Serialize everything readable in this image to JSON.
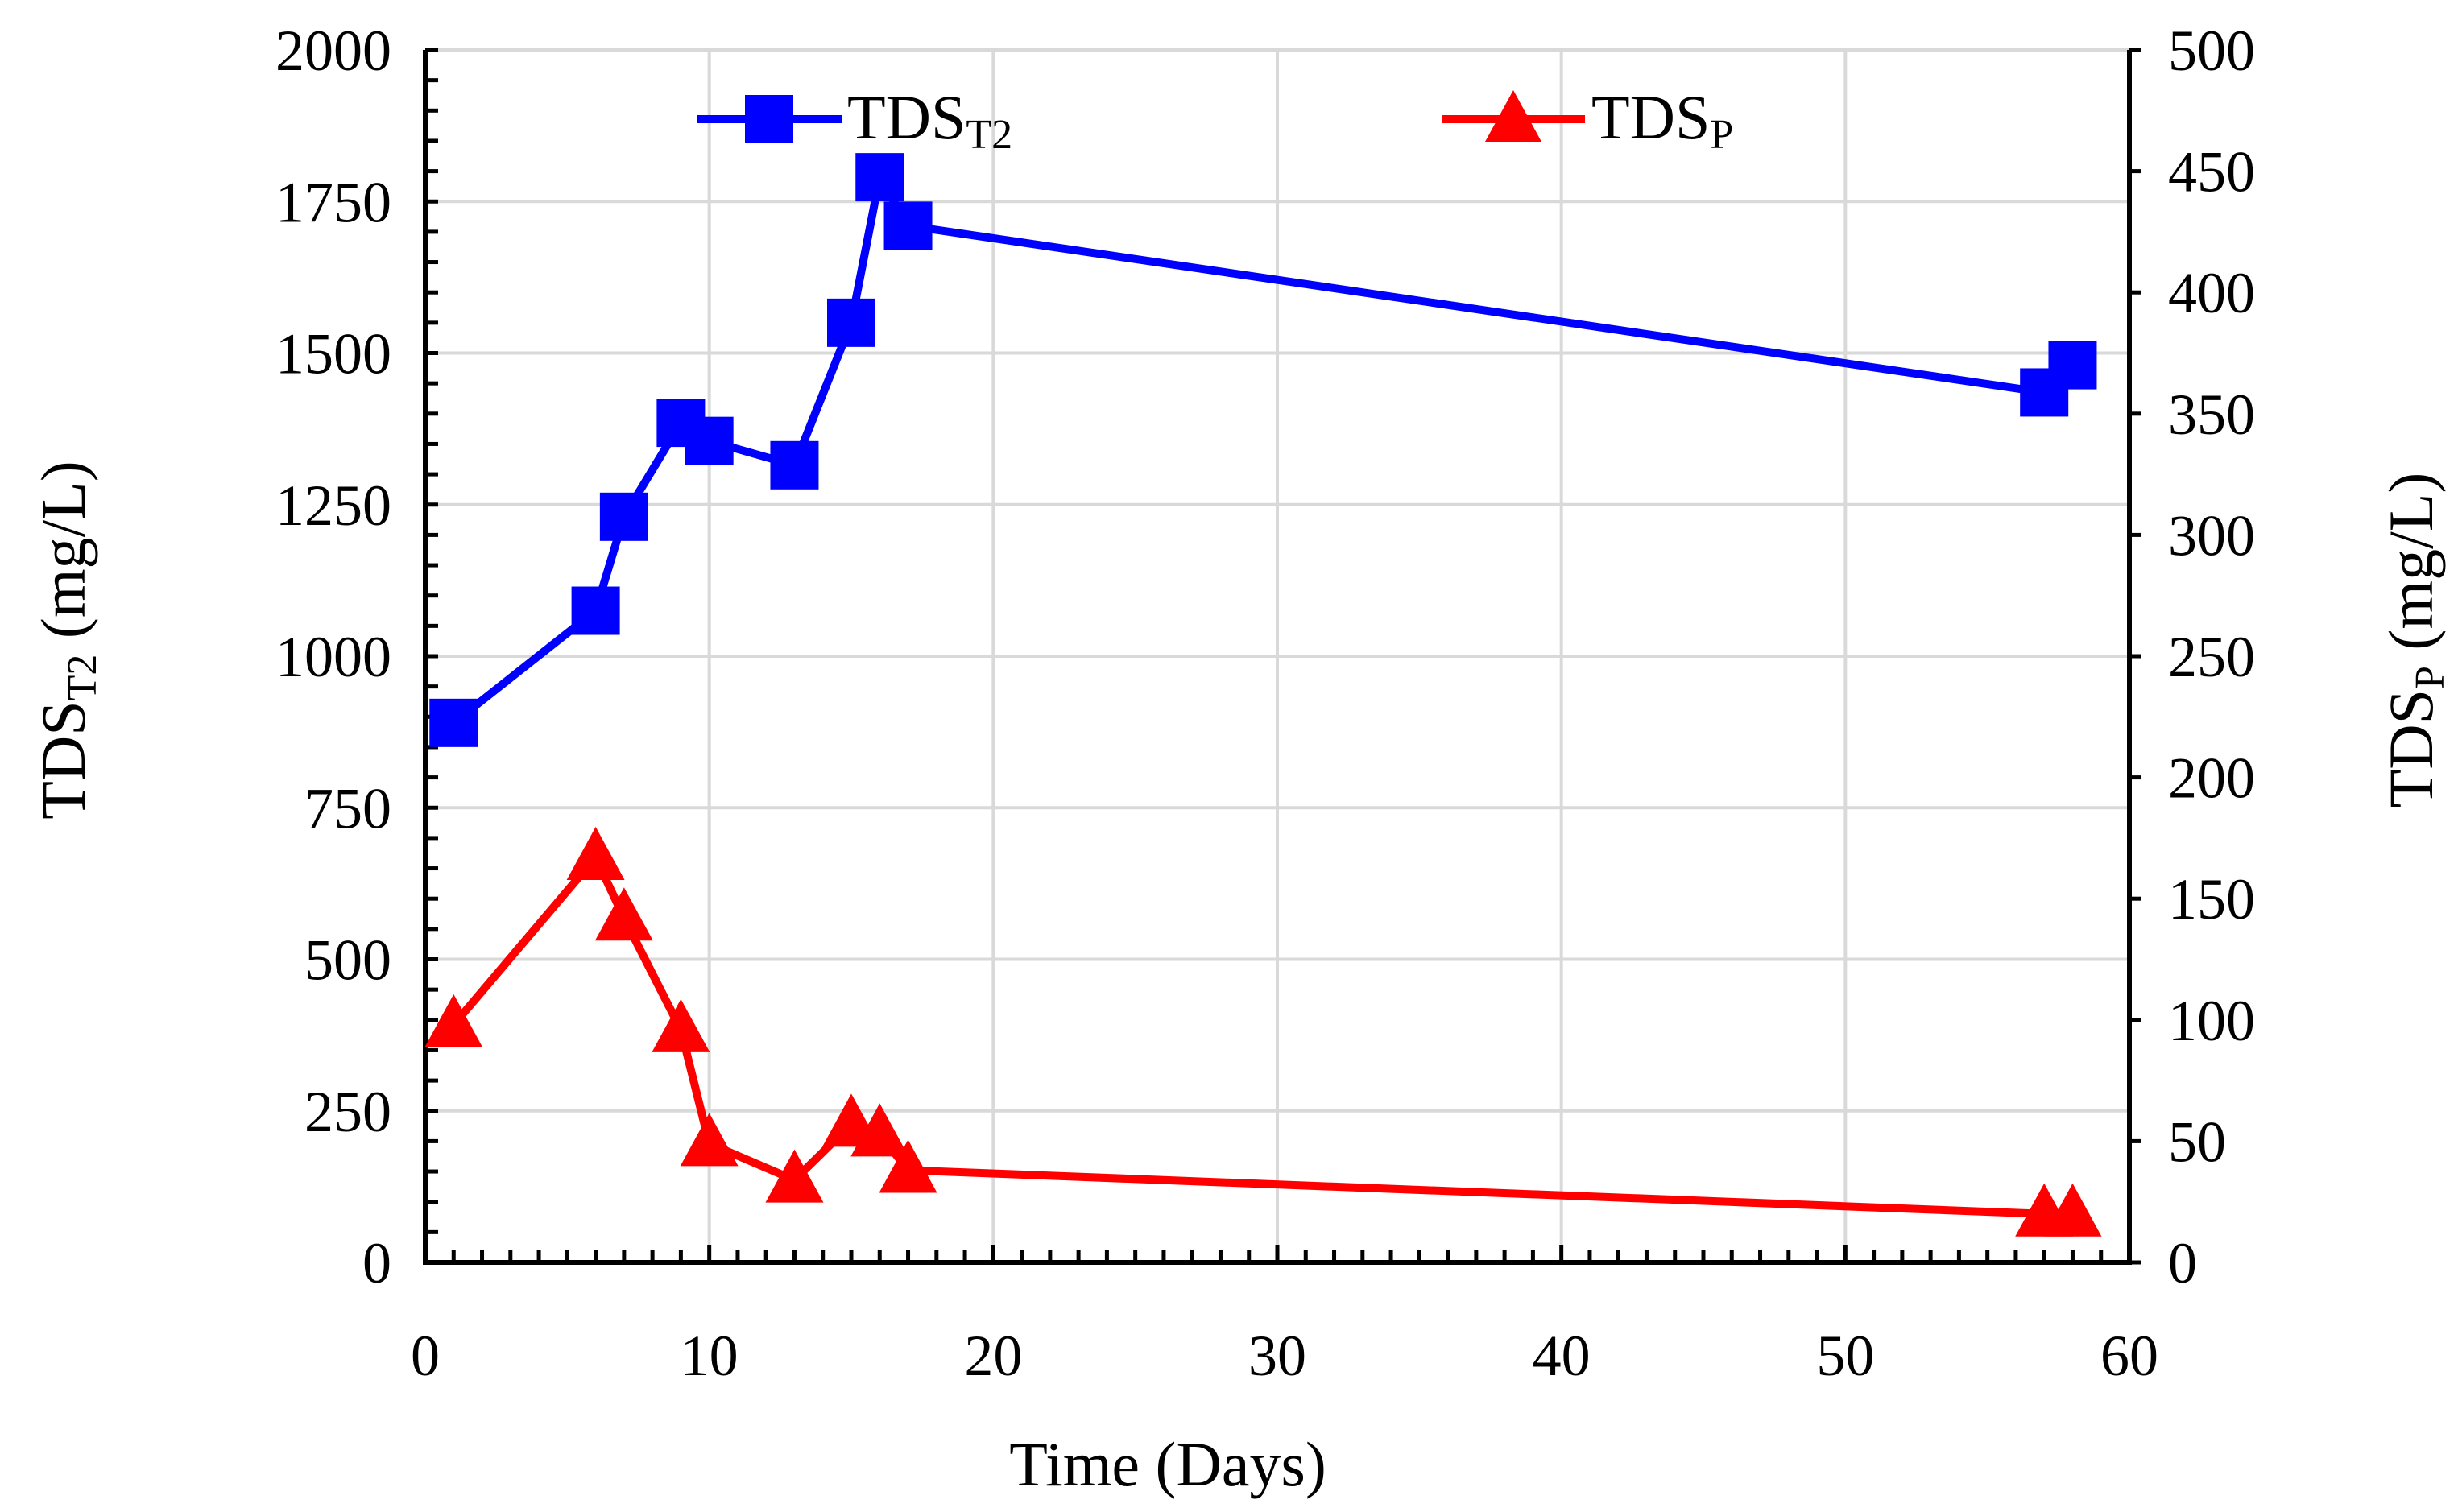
{
  "chart_data": {
    "type": "line",
    "title": "",
    "xlabel": "Time (Days)",
    "ylabel_left": {
      "base": "TDS",
      "sub": "T2",
      "unit": " (mg/L)"
    },
    "ylabel_right": {
      "base": "TDS",
      "sub": "P",
      "unit": " (mg/L)"
    },
    "xlim": [
      0,
      60
    ],
    "x_ticks": [
      "0",
      "10",
      "20",
      "30",
      "40",
      "50",
      "60"
    ],
    "ylim_left": [
      0,
      2000
    ],
    "y_left_ticks": [
      "0",
      "250",
      "500",
      "750",
      "1000",
      "1250",
      "1500",
      "1750",
      "2000"
    ],
    "ylim_right": [
      0,
      500
    ],
    "y_right_ticks": [
      "0",
      "50",
      "100",
      "150",
      "200",
      "250",
      "300",
      "350",
      "400",
      "450",
      "500"
    ],
    "grid": true,
    "legend_position": "top",
    "series": [
      {
        "name": "TDST2",
        "legend_base": "TDS",
        "legend_sub": "T2",
        "axis": "left",
        "color": "#0000ff",
        "marker": "square",
        "x": [
          1,
          6,
          7,
          9,
          10,
          13,
          15,
          16,
          17,
          57,
          58
        ],
        "y": [
          890,
          1075,
          1230,
          1385,
          1355,
          1315,
          1550,
          1790,
          1710,
          1435,
          1480
        ]
      },
      {
        "name": "TDSP",
        "legend_base": "TDS",
        "legend_sub": "P",
        "axis": "right",
        "color": "#ff0000",
        "marker": "triangle",
        "x": [
          1,
          6,
          7,
          9,
          10,
          13,
          15,
          16,
          17,
          57,
          58
        ],
        "y": [
          98,
          167,
          142,
          96,
          49,
          34,
          57,
          53,
          38,
          20,
          20
        ]
      }
    ]
  }
}
